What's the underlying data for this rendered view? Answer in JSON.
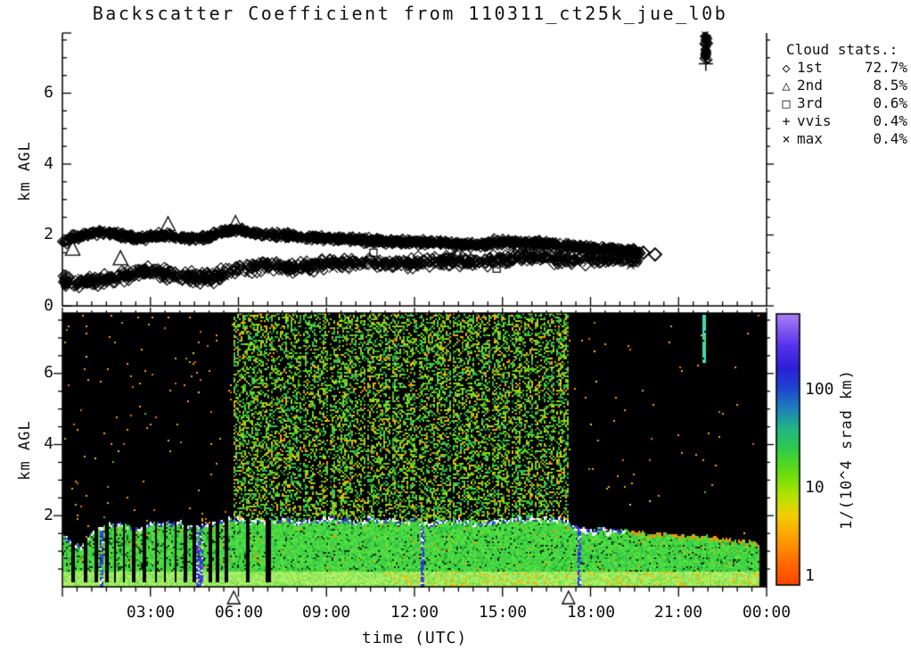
{
  "title": "Backscatter Coefficient from 110311_ct25k_jue_l0b",
  "legend": {
    "title": "Cloud stats.:",
    "entries": [
      {
        "marker": "diamond-icon",
        "glyph": "◇",
        "label": "1st",
        "value": "72.7%"
      },
      {
        "marker": "triangle-icon",
        "glyph": "△",
        "label": "2nd",
        "value": "8.5%"
      },
      {
        "marker": "square-icon",
        "glyph": "□",
        "label": "3rd",
        "value": "0.6%"
      },
      {
        "marker": "plus-icon",
        "glyph": "+",
        "label": "vvis",
        "value": "0.4%"
      },
      {
        "marker": "x-icon",
        "glyph": "×",
        "label": "max",
        "value": "0.4%"
      }
    ]
  },
  "axes": {
    "ylabel": "km AGL",
    "xlabel": "time (UTC)",
    "top_yticks": [
      "0",
      "2",
      "4",
      "6"
    ],
    "bottom_yticks": [
      "2",
      "4",
      "6"
    ],
    "xticks": [
      "03:00",
      "06:00",
      "09:00",
      "12:00",
      "15:00",
      "18:00",
      "21:00",
      "00:00"
    ]
  },
  "colorbar": {
    "ticks": [
      "1",
      "10",
      "100"
    ],
    "label": "1/(10^4 srad km)",
    "scale": "log",
    "value_range": [
      0.9,
      700
    ],
    "gradient_stops": [
      [
        0.0,
        "#ff4400"
      ],
      [
        0.09,
        "#ff7000"
      ],
      [
        0.18,
        "#ffa400"
      ],
      [
        0.26,
        "#f0d000"
      ],
      [
        0.33,
        "#b0e400"
      ],
      [
        0.42,
        "#62dc12"
      ],
      [
        0.5,
        "#30cc48"
      ],
      [
        0.58,
        "#20b488"
      ],
      [
        0.66,
        "#1e78c0"
      ],
      [
        0.73,
        "#1e42d0"
      ],
      [
        0.8,
        "#2a20d8"
      ],
      [
        0.88,
        "#5530ea"
      ],
      [
        1.0,
        "#ab80f7"
      ]
    ]
  },
  "chart_data": [
    {
      "type": "scatter",
      "panel": "cloud-base-heights",
      "ylabel": "km AGL",
      "ylim_km": [
        0,
        7.7
      ],
      "xlim_hours": [
        0,
        24
      ],
      "yticks_km": [
        0,
        2,
        4,
        6
      ],
      "marker_style": "open-diamond",
      "n_points": 2800,
      "seed": 12345,
      "upper_band_km": {
        "hours": [
          0,
          0.5,
          1,
          1.5,
          2,
          2.5,
          3,
          3.5,
          4,
          4.5,
          5,
          5.5,
          6,
          6.5,
          7,
          7.5,
          8,
          9,
          10,
          11,
          12,
          13,
          14,
          15,
          16,
          17,
          18,
          19,
          19.7
        ],
        "height": [
          1.8,
          1.95,
          2.05,
          2.1,
          2.0,
          1.9,
          1.95,
          2.0,
          1.92,
          1.9,
          1.95,
          2.1,
          2.15,
          2.05,
          2.0,
          2.0,
          1.95,
          1.9,
          1.88,
          1.82,
          1.8,
          1.78,
          1.72,
          1.8,
          1.78,
          1.7,
          1.62,
          1.58,
          1.52
        ]
      },
      "lower_band_km": {
        "hours": [
          0,
          0.5,
          1,
          1.5,
          2,
          2.5,
          3,
          3.5,
          4,
          4.5,
          5,
          5.5,
          6,
          6.5,
          7,
          7.5,
          8,
          9,
          10,
          11,
          12,
          13,
          14,
          15,
          16,
          17
        ],
        "height": [
          0.7,
          0.65,
          0.7,
          0.75,
          0.8,
          0.9,
          1.0,
          0.9,
          0.85,
          0.8,
          0.78,
          0.9,
          1.0,
          1.1,
          1.18,
          1.1,
          1.05,
          1.2,
          1.22,
          1.18,
          1.2,
          1.28,
          1.22,
          1.3,
          1.4,
          1.32
        ]
      },
      "high_cluster": {
        "hours": [
          21.85,
          22.02
        ],
        "height_km": [
          6.85,
          7.65
        ],
        "n": 60
      },
      "triangle_points": [
        [
          1.98,
          1.33
        ],
        [
          3.6,
          2.29
        ],
        [
          0.35,
          1.6
        ],
        [
          5.9,
          2.32
        ]
      ],
      "square_points": [
        [
          2.6,
          1.05
        ],
        [
          10.6,
          1.5
        ],
        [
          14.8,
          1.05
        ],
        [
          16.4,
          1.55
        ]
      ],
      "isolated_diamonds": [
        [
          19.8,
          1.5
        ],
        [
          20.2,
          1.45
        ]
      ]
    },
    {
      "type": "heatmap",
      "panel": "backscatter-coefficient",
      "ylabel": "km AGL",
      "xlabel": "time (UTC)",
      "ylim_km": [
        0,
        7.7
      ],
      "xlim_hours": [
        0,
        24
      ],
      "value_unit": "1/(10^4 srad km)",
      "value_scale": "log",
      "value_ticks": [
        1,
        10,
        100
      ],
      "seed": 777,
      "boundary_layer_top_km": {
        "hours": [
          0,
          0.3,
          0.7,
          1.1,
          1.6,
          2,
          2.5,
          3,
          3.5,
          4,
          4.5,
          5,
          5.5,
          6,
          6.5,
          7,
          7.5,
          8,
          8.5,
          9,
          9.5,
          10,
          10.5,
          11,
          11.5,
          12,
          12.5,
          13,
          13.5,
          14,
          14.5,
          15,
          15.5,
          16,
          16.5,
          17,
          17.5,
          18,
          19,
          20,
          21,
          22,
          23,
          23.8
        ],
        "height": [
          1.5,
          1.25,
          1.15,
          1.6,
          1.78,
          1.8,
          1.65,
          1.78,
          1.82,
          1.85,
          1.7,
          1.78,
          1.9,
          1.95,
          1.85,
          1.9,
          1.95,
          1.85,
          1.9,
          1.95,
          1.9,
          1.85,
          1.95,
          1.9,
          1.85,
          1.9,
          1.82,
          1.85,
          1.9,
          1.8,
          1.85,
          1.9,
          1.95,
          1.9,
          1.95,
          1.9,
          1.72,
          1.65,
          1.6,
          1.5,
          1.45,
          1.4,
          1.3,
          1.25
        ]
      },
      "dense_speckle_hours": [
        5.83,
        17.25
      ],
      "data_end_hour": 23.75,
      "sparse_dot_density": {
        "before_dense": 0.012,
        "after_dense": 0.007,
        "late_night": 0.003
      },
      "gap_columns_hours": [
        0.35,
        0.8,
        1.15,
        1.5,
        1.8,
        2.1,
        2.45,
        2.8,
        3.2,
        3.5,
        3.85,
        4.2,
        4.5,
        5.05,
        5.3,
        5.6,
        6.3,
        6.95,
        7.05
      ],
      "thin_dark_columns_hours": [
        8.2,
        9.1,
        10.35,
        11.2,
        12.15,
        13.3,
        14.6,
        15.3,
        16.1,
        16.8
      ],
      "blue_plumes": [
        [
          4.55,
          4.78,
          0.0
        ],
        [
          12.2,
          12.36,
          0.0
        ],
        [
          1.3,
          1.4,
          0.5
        ],
        [
          17.55,
          17.7,
          0.9
        ]
      ],
      "white_blob_hours": [
        17.4,
        18.8
      ],
      "cyan_streak": {
        "hours": [
          21.84,
          21.96
        ],
        "height_km": [
          6.3,
          7.65
        ]
      },
      "axis_triangle_marker_hours": [
        5.84,
        17.25
      ]
    }
  ]
}
